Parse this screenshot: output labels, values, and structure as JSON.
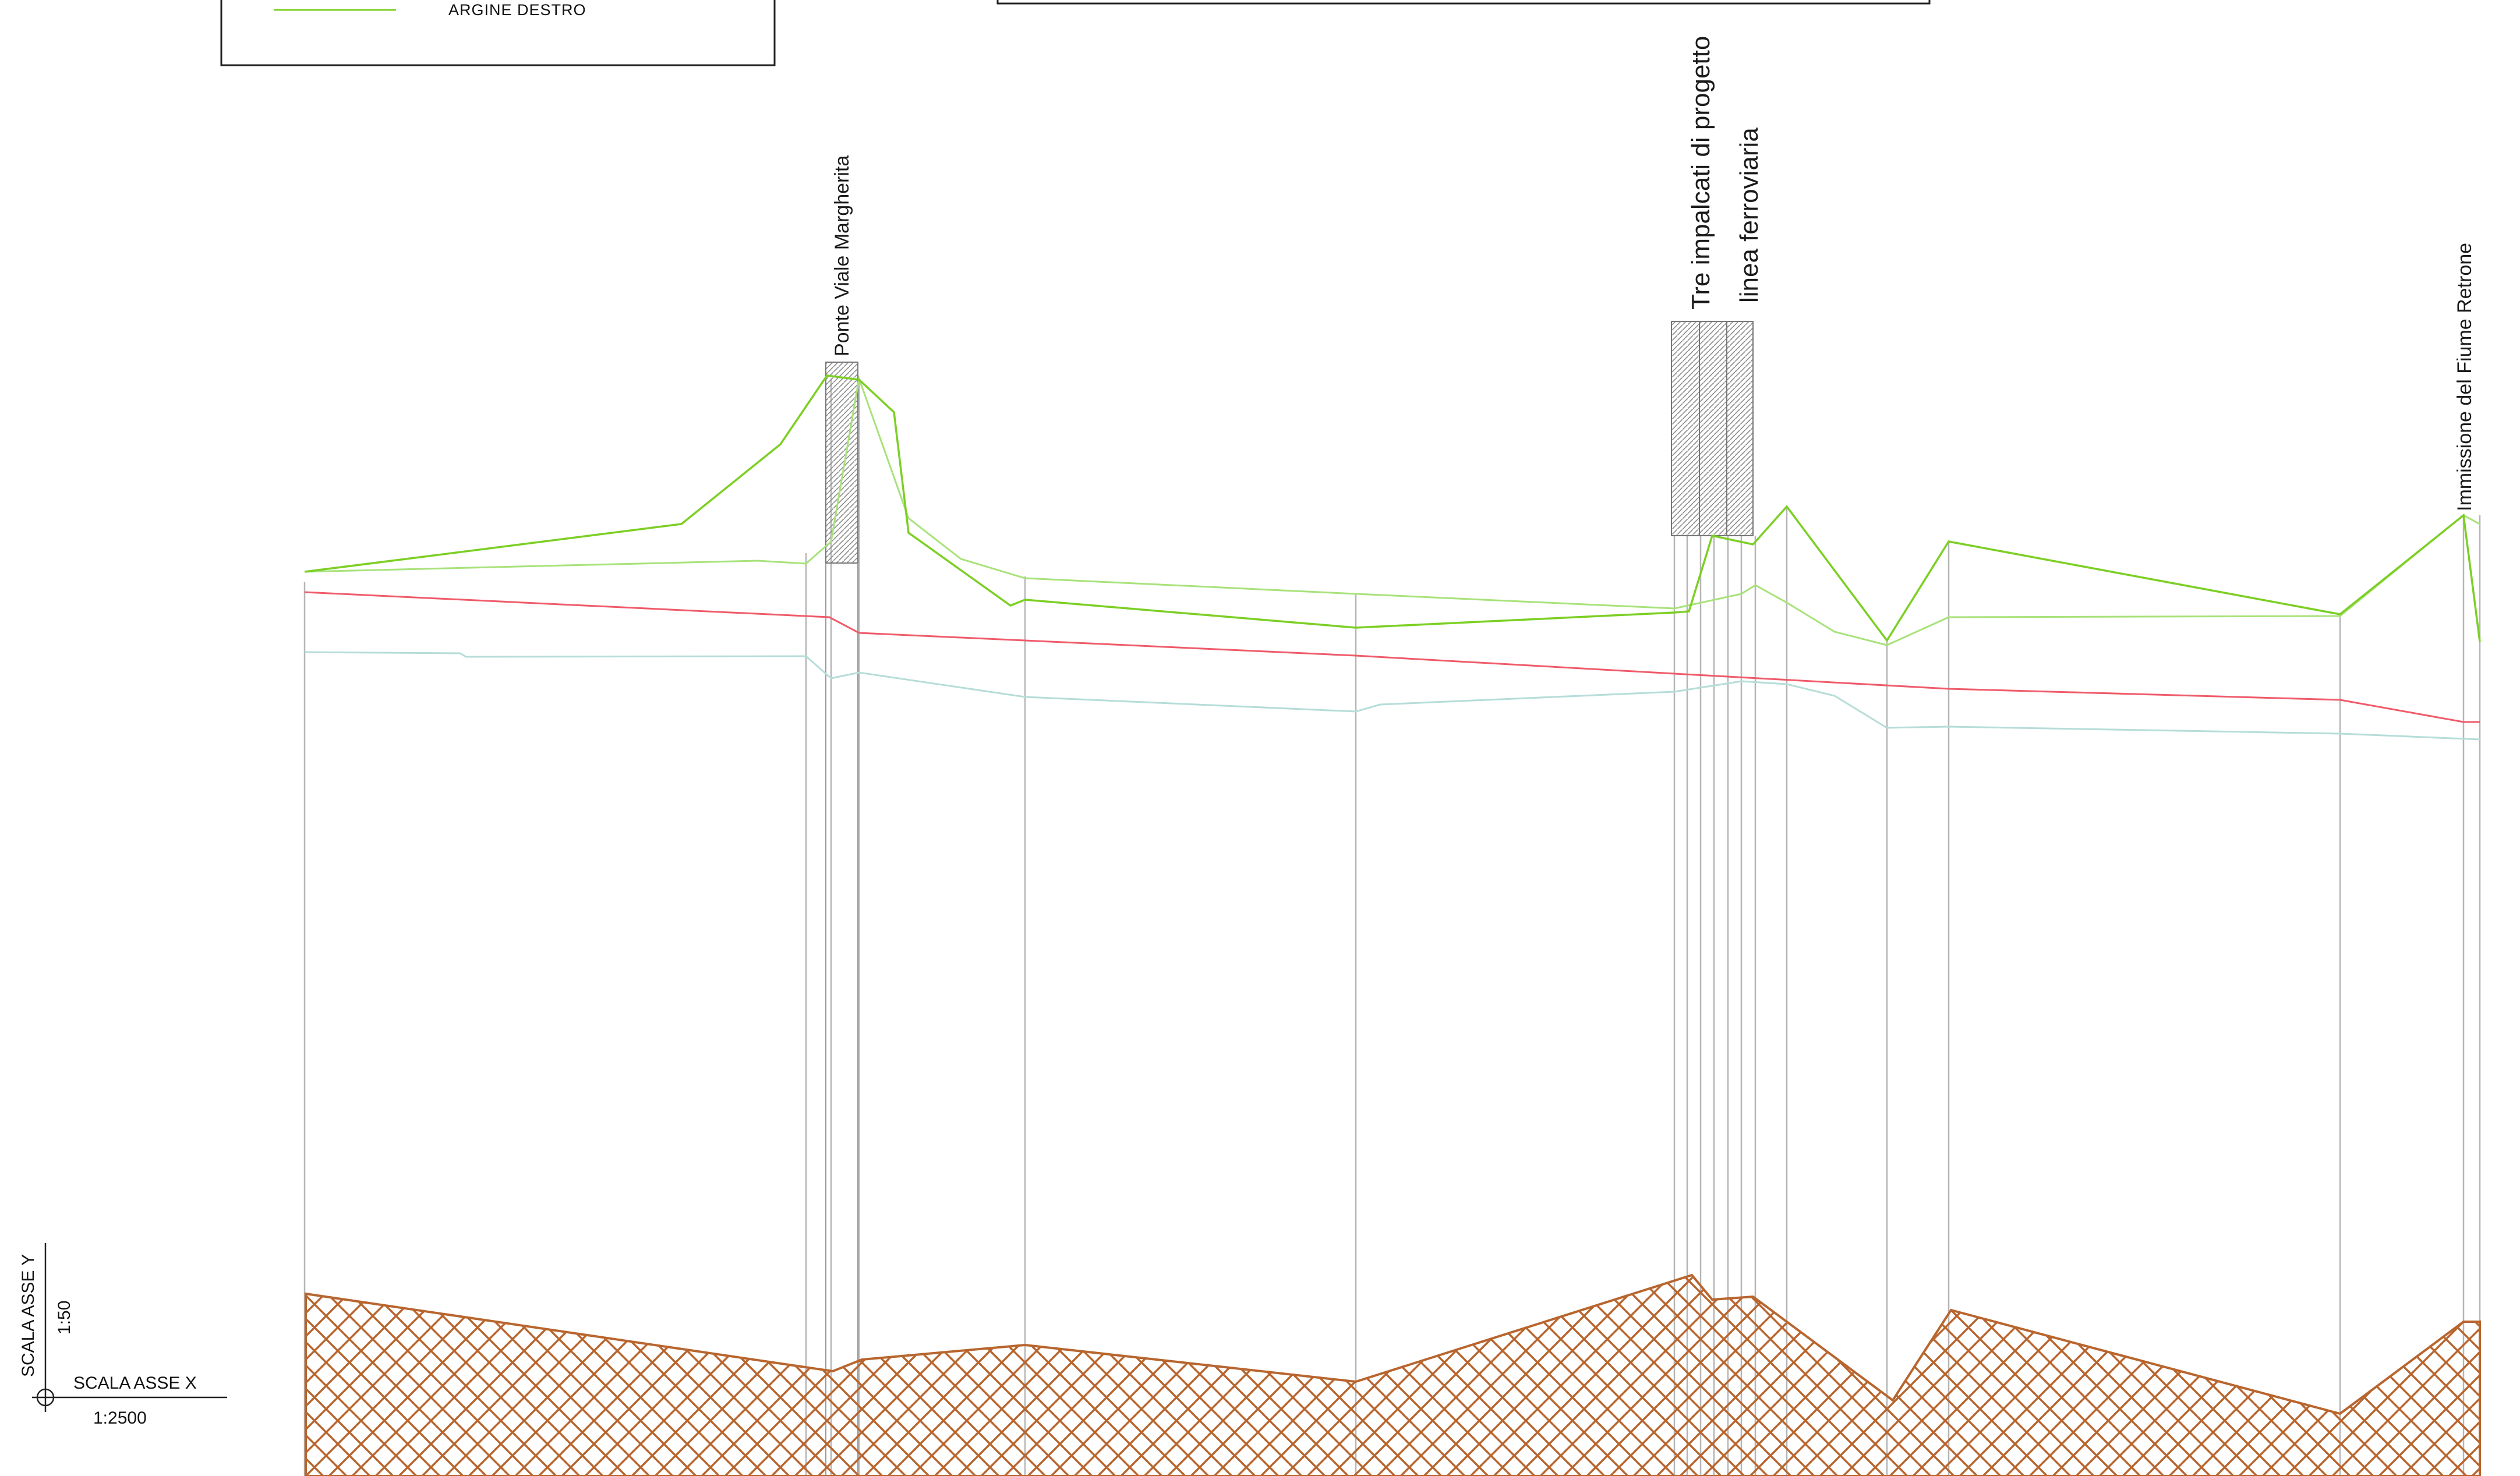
{
  "legend": {
    "right_bank_label": "ARGINE DESTRO",
    "right_bank_color": "#7ccf24"
  },
  "annotations": {
    "bridge": "Ponte Viale Margherita",
    "railway_line1": "Tre impalcati di progetto",
    "railway_line2": "linea ferroviaria",
    "confluence": "Immissione del Fiume Retrone"
  },
  "scale": {
    "y_axis_label": "SCALA ASSE Y",
    "y_axis_value": "1:50",
    "x_axis_label": "SCALA ASSE X",
    "x_axis_value": "1:2500"
  },
  "colors": {
    "right_bank": "#7ccf24",
    "left_bank": "#a8e27a",
    "water_level": "#ef5b6a",
    "energy_line": "#b6ddd8",
    "riverbed": "#b8652e",
    "section_lines": "#b5b5b5"
  }
}
